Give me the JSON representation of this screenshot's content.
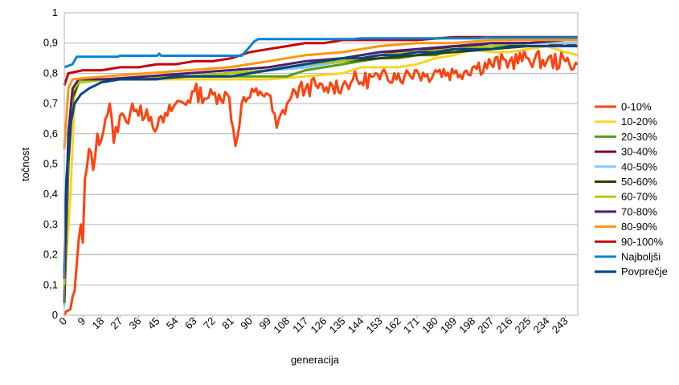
{
  "chart_data": {
    "type": "line",
    "title": "",
    "xlabel": "generacija",
    "ylabel": "točnost",
    "ylim": [
      0,
      1
    ],
    "yticks": [
      "0",
      "0,1",
      "0,2",
      "0,3",
      "0,4",
      "0,5",
      "0,6",
      "0,7",
      "0,8",
      "0,9",
      "1"
    ],
    "xlim": [
      0,
      249
    ],
    "xticks": [
      "0",
      "9",
      "18",
      "27",
      "36",
      "45",
      "54",
      "63",
      "72",
      "81",
      "90",
      "99",
      "108",
      "117",
      "126",
      "135",
      "144",
      "153",
      "162",
      "171",
      "180",
      "189",
      "198",
      "207",
      "216",
      "225",
      "234",
      "243"
    ],
    "grid": "horizontal",
    "legend_position": "right",
    "series": [
      {
        "name": "0-10%",
        "color": "#ff420e",
        "noisy": true,
        "points": [
          [
            0,
            0
          ],
          [
            3,
            0.02
          ],
          [
            5,
            0.08
          ],
          [
            7,
            0.25
          ],
          [
            8,
            0.3
          ],
          [
            9,
            0.24
          ],
          [
            10,
            0.45
          ],
          [
            12,
            0.55
          ],
          [
            14,
            0.48
          ],
          [
            16,
            0.6
          ],
          [
            18,
            0.58
          ],
          [
            20,
            0.65
          ],
          [
            22,
            0.7
          ],
          [
            24,
            0.57
          ],
          [
            27,
            0.66
          ],
          [
            30,
            0.64
          ],
          [
            33,
            0.7
          ],
          [
            36,
            0.66
          ],
          [
            40,
            0.68
          ],
          [
            45,
            0.62
          ],
          [
            50,
            0.66
          ],
          [
            54,
            0.7
          ],
          [
            60,
            0.71
          ],
          [
            63,
            0.74
          ],
          [
            70,
            0.72
          ],
          [
            75,
            0.73
          ],
          [
            80,
            0.72
          ],
          [
            83,
            0.56
          ],
          [
            86,
            0.7
          ],
          [
            90,
            0.72
          ],
          [
            95,
            0.74
          ],
          [
            99,
            0.73
          ],
          [
            103,
            0.62
          ],
          [
            108,
            0.7
          ],
          [
            112,
            0.74
          ],
          [
            117,
            0.75
          ],
          [
            122,
            0.76
          ],
          [
            126,
            0.74
          ],
          [
            130,
            0.76
          ],
          [
            135,
            0.76
          ],
          [
            140,
            0.78
          ],
          [
            144,
            0.77
          ],
          [
            150,
            0.79
          ],
          [
            153,
            0.78
          ],
          [
            160,
            0.8
          ],
          [
            165,
            0.79
          ],
          [
            171,
            0.81
          ],
          [
            175,
            0.79
          ],
          [
            180,
            0.81
          ],
          [
            189,
            0.8
          ],
          [
            198,
            0.82
          ],
          [
            207,
            0.83
          ],
          [
            216,
            0.84
          ],
          [
            225,
            0.85
          ],
          [
            234,
            0.84
          ],
          [
            243,
            0.84
          ],
          [
            249,
            0.83
          ]
        ]
      },
      {
        "name": "10-20%",
        "color": "#ffd320",
        "noisy": false,
        "points": [
          [
            0,
            0.08
          ],
          [
            3,
            0.4
          ],
          [
            5,
            0.72
          ],
          [
            7,
            0.78
          ],
          [
            20,
            0.78
          ],
          [
            40,
            0.78
          ],
          [
            60,
            0.78
          ],
          [
            80,
            0.78
          ],
          [
            99,
            0.78
          ],
          [
            117,
            0.79
          ],
          [
            135,
            0.8
          ],
          [
            144,
            0.82
          ],
          [
            153,
            0.82
          ],
          [
            162,
            0.82
          ],
          [
            171,
            0.83
          ],
          [
            180,
            0.85
          ],
          [
            189,
            0.86
          ],
          [
            198,
            0.88
          ],
          [
            207,
            0.87
          ],
          [
            216,
            0.87
          ],
          [
            225,
            0.88
          ],
          [
            234,
            0.89
          ],
          [
            243,
            0.87
          ],
          [
            249,
            0.86
          ]
        ]
      },
      {
        "name": "20-30%",
        "color": "#579d1c",
        "noisy": false,
        "points": [
          [
            0,
            0.14
          ],
          [
            2,
            0.6
          ],
          [
            4,
            0.74
          ],
          [
            7,
            0.77
          ],
          [
            20,
            0.78
          ],
          [
            40,
            0.78
          ],
          [
            60,
            0.79
          ],
          [
            80,
            0.79
          ],
          [
            99,
            0.79
          ],
          [
            108,
            0.79
          ],
          [
            117,
            0.81
          ],
          [
            126,
            0.82
          ],
          [
            135,
            0.83
          ],
          [
            144,
            0.84
          ],
          [
            153,
            0.85
          ],
          [
            162,
            0.85
          ],
          [
            171,
            0.86
          ],
          [
            180,
            0.86
          ],
          [
            189,
            0.88
          ],
          [
            198,
            0.88
          ],
          [
            207,
            0.89
          ],
          [
            216,
            0.89
          ],
          [
            225,
            0.9
          ],
          [
            234,
            0.9
          ],
          [
            243,
            0.89
          ],
          [
            249,
            0.9
          ]
        ]
      },
      {
        "name": "30-40%",
        "color": "#7e0021",
        "noisy": false,
        "points": [
          [
            0,
            0.05
          ],
          [
            2,
            0.5
          ],
          [
            4,
            0.72
          ],
          [
            7,
            0.77
          ],
          [
            20,
            0.78
          ],
          [
            40,
            0.78
          ],
          [
            60,
            0.79
          ],
          [
            80,
            0.8
          ],
          [
            99,
            0.81
          ],
          [
            117,
            0.82
          ],
          [
            135,
            0.84
          ],
          [
            144,
            0.85
          ],
          [
            153,
            0.86
          ],
          [
            162,
            0.87
          ],
          [
            171,
            0.87
          ],
          [
            180,
            0.88
          ],
          [
            189,
            0.89
          ],
          [
            198,
            0.89
          ],
          [
            207,
            0.9
          ],
          [
            216,
            0.9
          ],
          [
            225,
            0.9
          ],
          [
            234,
            0.9
          ],
          [
            243,
            0.89
          ],
          [
            249,
            0.9
          ]
        ]
      },
      {
        "name": "40-50%",
        "color": "#83caff",
        "noisy": false,
        "points": [
          [
            0,
            0.03
          ],
          [
            2,
            0.55
          ],
          [
            4,
            0.73
          ],
          [
            7,
            0.77
          ],
          [
            20,
            0.78
          ],
          [
            40,
            0.78
          ],
          [
            60,
            0.79
          ],
          [
            80,
            0.8
          ],
          [
            99,
            0.81
          ],
          [
            117,
            0.82
          ],
          [
            135,
            0.84
          ],
          [
            153,
            0.86
          ],
          [
            171,
            0.87
          ],
          [
            189,
            0.88
          ],
          [
            207,
            0.89
          ],
          [
            225,
            0.9
          ],
          [
            243,
            0.9
          ],
          [
            249,
            0.9
          ]
        ]
      },
      {
        "name": "50-60%",
        "color": "#314004",
        "noisy": false,
        "points": [
          [
            0,
            0.04
          ],
          [
            2,
            0.52
          ],
          [
            4,
            0.72
          ],
          [
            7,
            0.77
          ],
          [
            20,
            0.78
          ],
          [
            40,
            0.78
          ],
          [
            60,
            0.79
          ],
          [
            80,
            0.8
          ],
          [
            99,
            0.81
          ],
          [
            117,
            0.83
          ],
          [
            135,
            0.84
          ],
          [
            153,
            0.85
          ],
          [
            171,
            0.86
          ],
          [
            189,
            0.87
          ],
          [
            207,
            0.88
          ],
          [
            225,
            0.89
          ],
          [
            243,
            0.89
          ],
          [
            249,
            0.89
          ]
        ]
      },
      {
        "name": "60-70%",
        "color": "#aecf00",
        "noisy": false,
        "points": [
          [
            0,
            0.1
          ],
          [
            2,
            0.55
          ],
          [
            4,
            0.74
          ],
          [
            7,
            0.77
          ],
          [
            20,
            0.78
          ],
          [
            40,
            0.79
          ],
          [
            60,
            0.79
          ],
          [
            80,
            0.8
          ],
          [
            99,
            0.81
          ],
          [
            117,
            0.83
          ],
          [
            135,
            0.84
          ],
          [
            153,
            0.86
          ],
          [
            171,
            0.87
          ],
          [
            189,
            0.88
          ],
          [
            207,
            0.89
          ],
          [
            225,
            0.9
          ],
          [
            243,
            0.91
          ],
          [
            249,
            0.91
          ]
        ]
      },
      {
        "name": "70-80%",
        "color": "#4b1f6f",
        "noisy": false,
        "points": [
          [
            0,
            0.12
          ],
          [
            2,
            0.6
          ],
          [
            4,
            0.75
          ],
          [
            7,
            0.78
          ],
          [
            20,
            0.78
          ],
          [
            40,
            0.79
          ],
          [
            60,
            0.8
          ],
          [
            80,
            0.81
          ],
          [
            99,
            0.82
          ],
          [
            117,
            0.84
          ],
          [
            135,
            0.85
          ],
          [
            153,
            0.87
          ],
          [
            171,
            0.88
          ],
          [
            189,
            0.89
          ],
          [
            207,
            0.9
          ],
          [
            225,
            0.9
          ],
          [
            243,
            0.91
          ],
          [
            249,
            0.91
          ]
        ]
      },
      {
        "name": "80-90%",
        "color": "#ff950e",
        "noisy": false,
        "points": [
          [
            0,
            0.55
          ],
          [
            2,
            0.75
          ],
          [
            4,
            0.78
          ],
          [
            20,
            0.79
          ],
          [
            40,
            0.8
          ],
          [
            60,
            0.81
          ],
          [
            80,
            0.82
          ],
          [
            99,
            0.84
          ],
          [
            117,
            0.86
          ],
          [
            135,
            0.87
          ],
          [
            153,
            0.89
          ],
          [
            171,
            0.9
          ],
          [
            189,
            0.9
          ],
          [
            207,
            0.91
          ],
          [
            225,
            0.91
          ],
          [
            243,
            0.91
          ],
          [
            249,
            0.91
          ]
        ]
      },
      {
        "name": "90-100%",
        "color": "#c5000b",
        "noisy": false,
        "points": [
          [
            0,
            0.76
          ],
          [
            2,
            0.8
          ],
          [
            9,
            0.81
          ],
          [
            18,
            0.81
          ],
          [
            27,
            0.82
          ],
          [
            36,
            0.82
          ],
          [
            45,
            0.83
          ],
          [
            54,
            0.83
          ],
          [
            63,
            0.84
          ],
          [
            72,
            0.84
          ],
          [
            81,
            0.85
          ],
          [
            90,
            0.87
          ],
          [
            99,
            0.88
          ],
          [
            108,
            0.89
          ],
          [
            117,
            0.9
          ],
          [
            126,
            0.9
          ],
          [
            135,
            0.91
          ],
          [
            144,
            0.91
          ],
          [
            153,
            0.91
          ],
          [
            171,
            0.91
          ],
          [
            189,
            0.92
          ],
          [
            207,
            0.92
          ],
          [
            225,
            0.92
          ],
          [
            249,
            0.92
          ]
        ]
      },
      {
        "name": "Najboljši",
        "color": "#0084d1",
        "noisy": false,
        "points": [
          [
            0,
            0.82
          ],
          [
            4,
            0.83
          ],
          [
            6,
            0.855
          ],
          [
            26,
            0.855
          ],
          [
            27,
            0.858
          ],
          [
            45,
            0.858
          ],
          [
            46,
            0.865
          ],
          [
            47,
            0.858
          ],
          [
            86,
            0.858
          ],
          [
            89,
            0.88
          ],
          [
            92,
            0.905
          ],
          [
            94,
            0.913
          ],
          [
            140,
            0.913
          ],
          [
            144,
            0.916
          ],
          [
            200,
            0.916
          ],
          [
            205,
            0.918
          ],
          [
            249,
            0.918
          ]
        ]
      },
      {
        "name": "Povprečje",
        "color": "#004586",
        "noisy": false,
        "points": [
          [
            0,
            0.14
          ],
          [
            1,
            0.45
          ],
          [
            3,
            0.63
          ],
          [
            5,
            0.7
          ],
          [
            8,
            0.73
          ],
          [
            12,
            0.75
          ],
          [
            18,
            0.77
          ],
          [
            27,
            0.78
          ],
          [
            36,
            0.78
          ],
          [
            45,
            0.78
          ],
          [
            54,
            0.79
          ],
          [
            63,
            0.79
          ],
          [
            72,
            0.79
          ],
          [
            81,
            0.79
          ],
          [
            90,
            0.8
          ],
          [
            99,
            0.81
          ],
          [
            108,
            0.82
          ],
          [
            117,
            0.83
          ],
          [
            126,
            0.84
          ],
          [
            135,
            0.85
          ],
          [
            144,
            0.85
          ],
          [
            153,
            0.86
          ],
          [
            162,
            0.86
          ],
          [
            171,
            0.87
          ],
          [
            180,
            0.87
          ],
          [
            189,
            0.88
          ],
          [
            198,
            0.88
          ],
          [
            207,
            0.88
          ],
          [
            216,
            0.89
          ],
          [
            225,
            0.89
          ],
          [
            234,
            0.89
          ],
          [
            243,
            0.89
          ],
          [
            249,
            0.89
          ]
        ]
      }
    ]
  }
}
